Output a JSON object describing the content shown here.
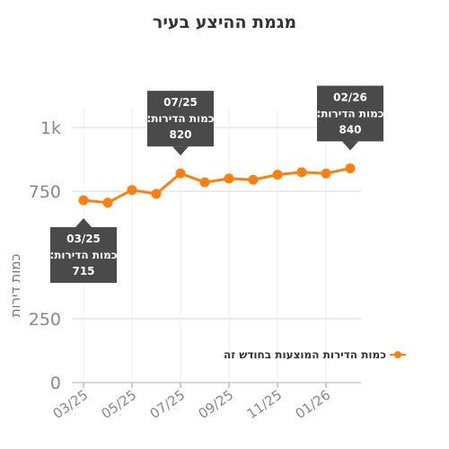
{
  "chart_data": {
    "type": "line",
    "title": "מגמת ההיצע בעיר",
    "xlabel": "",
    "ylabel": "כמות דירות",
    "x": [
      "03/25",
      "04/25",
      "05/25",
      "06/25",
      "07/25",
      "08/25",
      "09/25",
      "10/25",
      "11/25",
      "12/25",
      "01/26",
      "02/26"
    ],
    "x_tick_labels": [
      "03/25",
      "05/25",
      "07/25",
      "09/25",
      "11/25",
      "01/26"
    ],
    "y_ticks": [
      0,
      250,
      750,
      1000
    ],
    "y_tick_labels": [
      "0",
      "250",
      "750",
      "1k"
    ],
    "ylim": [
      0,
      1000
    ],
    "grid": true,
    "legend_position": "right",
    "series": [
      {
        "name": "כמות הדירות המוצעות בחודש זה",
        "color": "#ff7f0e",
        "values": [
          715,
          705,
          755,
          740,
          820,
          785,
          800,
          795,
          815,
          825,
          820,
          840
        ]
      }
    ],
    "annotations": [
      {
        "index": 0,
        "lines": [
          "03/25",
          "כמות הדירות:",
          "715"
        ]
      },
      {
        "index": 4,
        "lines": [
          "07/25",
          "כמות הדירות:",
          "820"
        ]
      },
      {
        "index": 11,
        "lines": [
          "02/26",
          "כמות הדירות:",
          "840"
        ]
      }
    ]
  }
}
